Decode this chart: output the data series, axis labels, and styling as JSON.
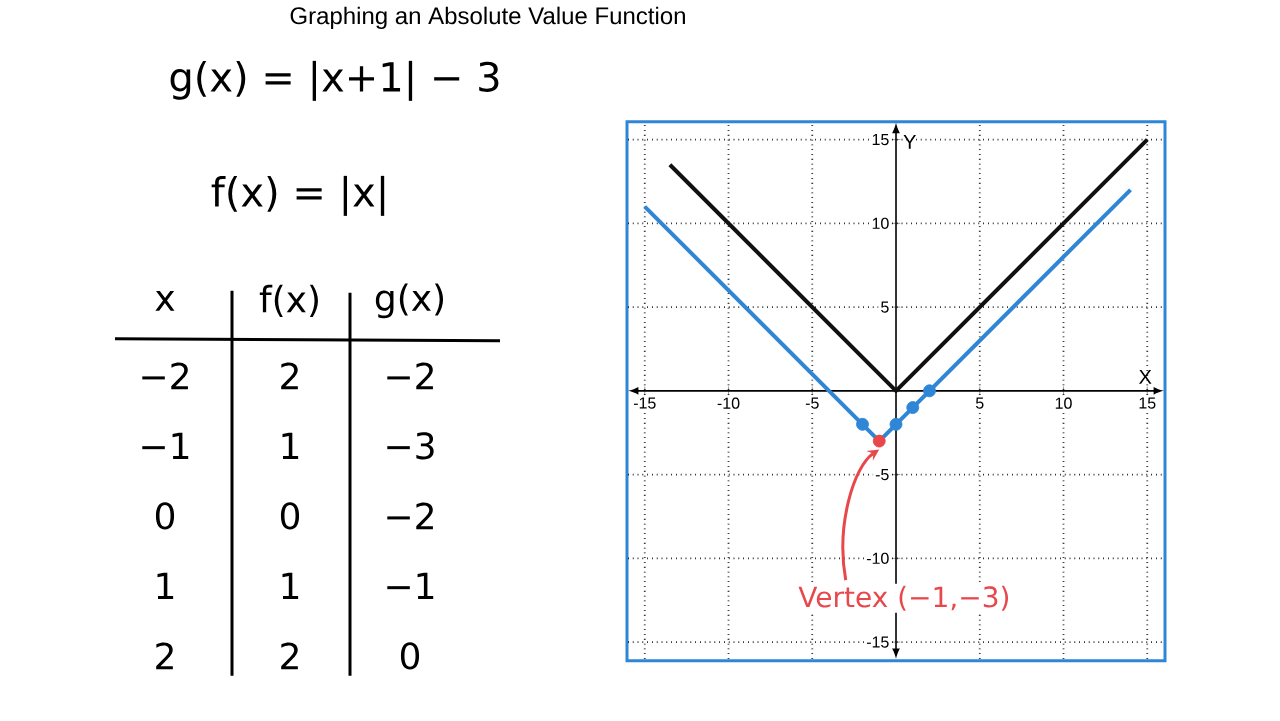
{
  "chart_data": {
    "type": "line",
    "title": "Graphing an Absolute Value Function",
    "xlabel": "X",
    "ylabel": "Y",
    "xlim": [
      -16,
      16
    ],
    "ylim": [
      -16,
      16
    ],
    "xticks": [
      -15,
      -10,
      -5,
      5,
      10,
      15
    ],
    "yticks": [
      -15,
      -10,
      -5,
      5,
      10,
      15
    ],
    "grid": true,
    "series": [
      {
        "type": "line",
        "color": "#111111",
        "x": [
          -13.5,
          0,
          15
        ],
        "values": [
          13.5,
          0,
          15
        ],
        "marker": "none"
      },
      {
        "type": "line",
        "color": "#2f86d6",
        "x": [
          -15,
          -1,
          14
        ],
        "values": [
          11,
          -3,
          12
        ],
        "marker": "none"
      },
      {
        "type": "scatter",
        "color": "#2f86d6",
        "x": [
          -2,
          0,
          1,
          2
        ],
        "values": [
          -2,
          -2,
          -1,
          0
        ],
        "marker": "circle"
      },
      {
        "type": "scatter",
        "color": "#e8474c",
        "x": [
          -1
        ],
        "values": [
          -3
        ],
        "marker": "circle"
      }
    ],
    "annotations": [
      "g(x) = |x+1| − 3",
      "f(x) = |x|",
      "x",
      "f(x)",
      "g(x)",
      "−2",
      "2",
      "−2",
      "−1",
      "1",
      "−3",
      "0",
      "0",
      "−2",
      "1",
      "1",
      "−1",
      "2",
      "2",
      "0",
      "Vertex (−1,−3)"
    ]
  }
}
